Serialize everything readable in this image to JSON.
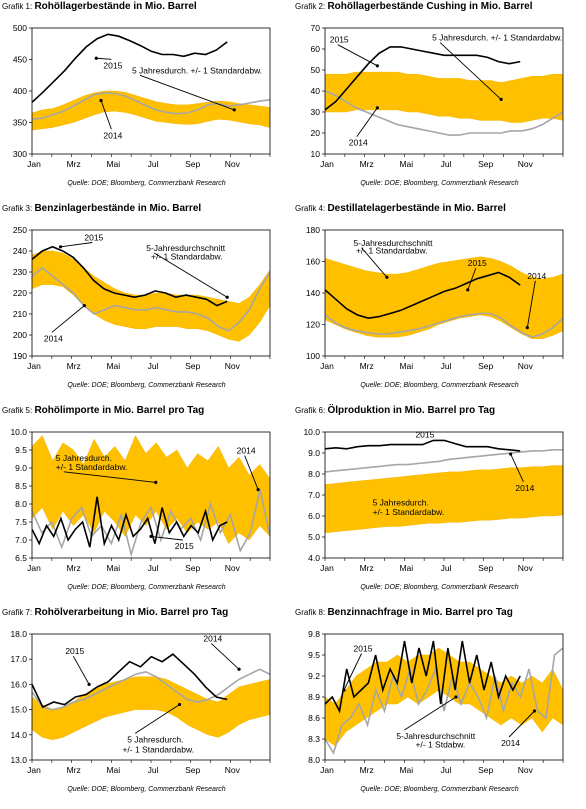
{
  "colors": {
    "band": "#FFC000",
    "band_edge": "#F5B400",
    "line2015": "#000000",
    "line2014": "#A6A6A6",
    "frame": "#000000"
  },
  "chart_data": [
    {
      "id": "c1",
      "type": "line",
      "label_prefix": "Grafik 1:",
      "title": "Rohöllagerbestände in Mio. Barrel",
      "source": "Quelle: DOE; Bloomberg, Commerzbank Research",
      "ylim": [
        300,
        500
      ],
      "yticks": [
        300,
        350,
        400,
        450,
        500
      ],
      "xtick_labels": [
        "Jan",
        "Mrz",
        "Mai",
        "Jul",
        "Sep",
        "Nov"
      ],
      "band_upper": [
        365,
        370,
        372,
        378,
        385,
        392,
        397,
        400,
        400,
        398,
        393,
        388,
        383,
        380,
        378,
        378,
        380,
        382,
        384,
        383,
        380,
        378,
        376,
        374
      ],
      "band_lower": [
        338,
        340,
        342,
        346,
        350,
        356,
        362,
        367,
        368,
        366,
        362,
        357,
        352,
        350,
        348,
        347,
        348,
        352,
        355,
        354,
        351,
        348,
        346,
        342
      ],
      "series_2015": [
        382,
        398,
        415,
        432,
        452,
        470,
        483,
        490,
        487,
        480,
        472,
        463,
        458,
        458,
        455,
        460,
        458,
        465,
        478
      ],
      "series_2014": [
        355,
        357,
        362,
        368,
        376,
        385,
        394,
        397,
        396,
        392,
        385,
        377,
        370,
        366,
        364,
        365,
        370,
        378,
        380,
        376,
        378,
        381,
        384,
        386
      ],
      "annotations": [
        {
          "text": "2015",
          "x": 0.27,
          "y": 452,
          "tx": 0.3,
          "ty": 436
        },
        {
          "text": "2014",
          "x": 0.29,
          "y": 385,
          "tx": 0.3,
          "ty": 325
        },
        {
          "text": "5 Jahresdurch. +/- 1 Standardabw.",
          "x": 0.85,
          "y": 370,
          "tx": 0.42,
          "ty": 428
        }
      ]
    },
    {
      "id": "c2",
      "type": "line",
      "label_prefix": "Grafik 2:",
      "title": "Rohöllagerbestände Cushing in Mio. Barrel",
      "source": "Quelle: DOE; Bloomberg, Commerzbank Research",
      "ylim": [
        10,
        70
      ],
      "yticks": [
        10,
        20,
        30,
        40,
        50,
        60,
        70
      ],
      "xtick_labels": [
        "Jan",
        "Mrz",
        "Mai",
        "Jul",
        "Sep",
        "Nov"
      ],
      "band_upper": [
        48,
        48,
        48,
        49,
        49,
        49,
        49,
        49,
        48,
        48,
        47,
        46,
        46,
        46,
        45,
        45,
        45,
        44,
        45,
        46,
        47,
        47,
        48,
        48
      ],
      "band_lower": [
        30,
        30,
        30,
        31,
        31,
        31,
        31,
        31,
        30,
        30,
        29,
        28,
        28,
        27,
        27,
        26,
        26,
        26,
        25,
        25,
        26,
        27,
        27,
        26
      ],
      "series_2015": [
        31,
        35,
        41,
        47,
        53,
        58,
        61,
        61,
        60,
        59,
        58,
        57,
        57,
        57,
        57,
        56,
        54,
        53,
        54
      ],
      "series_2014": [
        40,
        38,
        35,
        32,
        30,
        28,
        26,
        24,
        23,
        22,
        21,
        20,
        19,
        19,
        20,
        20,
        20,
        20,
        21,
        21,
        22,
        24,
        27,
        30
      ],
      "annotations": [
        {
          "text": "2015",
          "x": 0.22,
          "y": 52,
          "tx": 0.02,
          "ty": 63
        },
        {
          "text": "5 Jahresdurch. +/- 1 Standardabw.",
          "x": 0.74,
          "y": 36,
          "tx": 0.45,
          "ty": 64
        },
        {
          "text": "2014",
          "x": 0.22,
          "y": 32,
          "tx": 0.1,
          "ty": 14
        }
      ]
    },
    {
      "id": "c3",
      "type": "line",
      "label_prefix": "Grafik 3:",
      "title": "Benzinlagerbestände in Mio. Barrel",
      "source": "Quelle: DOE; Bloomberg, Commerzbank Research",
      "ylim": [
        190,
        250
      ],
      "yticks": [
        190,
        200,
        210,
        220,
        230,
        240,
        250
      ],
      "xtick_labels": [
        "Jan",
        "Mrz",
        "Mai",
        "Jul",
        "Sep",
        "Nov"
      ],
      "band_upper": [
        238,
        240,
        240,
        239,
        236,
        232,
        228,
        225,
        222,
        220,
        219,
        219,
        220,
        220,
        219,
        219,
        219,
        218,
        217,
        216,
        215,
        218,
        224,
        231
      ],
      "band_lower": [
        222,
        224,
        224,
        223,
        219,
        214,
        210,
        207,
        205,
        204,
        203,
        203,
        204,
        204,
        204,
        203,
        203,
        202,
        200,
        198,
        197,
        200,
        206,
        214
      ],
      "series_2015": [
        236,
        240,
        242,
        240,
        237,
        232,
        226,
        222,
        220,
        219,
        218,
        219,
        221,
        220,
        218,
        219,
        218,
        217,
        214,
        216
      ],
      "series_2014": [
        228,
        232,
        228,
        224,
        220,
        214,
        210,
        212,
        214,
        213,
        212,
        212,
        213,
        212,
        211,
        211,
        210,
        208,
        204,
        202,
        206,
        212,
        222,
        230
      ],
      "annotations": [
        {
          "text": "2015",
          "x": 0.12,
          "y": 242,
          "tx": 0.22,
          "ty": 245
        },
        {
          "text": "5-Jahresdurchschnitt",
          "x": 0.82,
          "y": 218,
          "tx": 0.48,
          "ty": 240
        },
        {
          "text": "+/- 1 Standardabw.",
          "x": null,
          "y": null,
          "tx": 0.5,
          "ty": 236
        },
        {
          "text": "2014",
          "x": 0.22,
          "y": 214,
          "tx": 0.05,
          "ty": 197
        }
      ]
    },
    {
      "id": "c4",
      "type": "line",
      "label_prefix": "Grafik 4:",
      "title": "Destillatelagerbestände in Mio. Barrel",
      "source": "Quelle: DOE; Bloomberg, Commerzbank Research",
      "ylim": [
        100,
        180
      ],
      "yticks": [
        100,
        120,
        140,
        160,
        180
      ],
      "xtick_labels": [
        "Jan",
        "Mrz",
        "Mai",
        "Jul",
        "Sep",
        "Nov"
      ],
      "band_upper": [
        162,
        160,
        158,
        156,
        154,
        153,
        152,
        152,
        153,
        155,
        157,
        159,
        160,
        161,
        162,
        163,
        162,
        160,
        157,
        153,
        150,
        149,
        150,
        152
      ],
      "band_lower": [
        123,
        120,
        117,
        115,
        113,
        112,
        112,
        112,
        113,
        115,
        117,
        120,
        122,
        124,
        125,
        126,
        125,
        122,
        118,
        114,
        111,
        111,
        113,
        116
      ],
      "series_2015": [
        142,
        136,
        130,
        126,
        124,
        125,
        127,
        129,
        132,
        135,
        138,
        141,
        143,
        146,
        149,
        151,
        153,
        150,
        145
      ],
      "series_2014": [
        126,
        121,
        118,
        116,
        115,
        114,
        114,
        115,
        116,
        117,
        119,
        121,
        123,
        125,
        126,
        127,
        127,
        124,
        119,
        115,
        112,
        114,
        118,
        124
      ],
      "annotations": [
        {
          "text": "5-Jahresdurchschnitt",
          "x": 0.26,
          "y": 150,
          "tx": 0.12,
          "ty": 170
        },
        {
          "text": "+/- 1 Standardabw.",
          "x": null,
          "y": null,
          "tx": 0.13,
          "ty": 165
        },
        {
          "text": "2015",
          "x": 0.6,
          "y": 142,
          "tx": 0.6,
          "ty": 157
        },
        {
          "text": "2014",
          "x": 0.85,
          "y": 118,
          "tx": 0.85,
          "ty": 149
        }
      ]
    },
    {
      "id": "c5",
      "type": "line",
      "label_prefix": "Grafik 5:",
      "title": "Rohölimporte in Mio. Barrel pro Tag",
      "source": "Quelle: DOE; Bloomberg, Commerzbank Research",
      "ylim": [
        6.5,
        10.0
      ],
      "yticks": [
        6.5,
        7.0,
        7.5,
        8.0,
        8.5,
        9.0,
        9.5,
        10.0
      ],
      "xtick_labels": [
        "Jan",
        "Mrz",
        "Mai",
        "Jul",
        "Sep",
        "Nov"
      ],
      "band_upper": [
        9.6,
        9.9,
        9.2,
        9.7,
        9.5,
        9.1,
        9.8,
        9.3,
        9.6,
        9.2,
        9.9,
        9.4,
        9.7,
        9.3,
        9.5,
        9.0,
        9.4,
        9.2,
        9.6,
        9.0,
        9.3,
        8.8,
        9.1,
        8.7
      ],
      "band_lower": [
        7.6,
        7.9,
        7.3,
        7.8,
        7.4,
        7.7,
        7.2,
        7.8,
        7.5,
        7.1,
        7.7,
        7.4,
        7.8,
        7.3,
        7.6,
        7.2,
        7.5,
        7.3,
        7.5,
        6.9,
        7.2,
        7.0,
        7.4,
        7.1
      ],
      "series_2015": [
        7.3,
        6.9,
        7.4,
        7.1,
        7.6,
        7.0,
        7.3,
        7.5,
        6.8,
        8.2,
        6.9,
        7.4,
        7.0,
        7.7,
        7.1,
        7.3,
        7.6,
        6.9,
        7.9,
        7.2,
        7.5,
        7.1,
        7.4,
        7.2,
        7.8,
        7.0,
        7.4,
        7.5
      ],
      "series_2014": [
        7.8,
        7.2,
        7.5,
        6.8,
        7.6,
        7.9,
        7.1,
        7.4,
        6.9,
        7.7,
        6.6,
        7.5,
        7.9,
        7.0,
        7.8,
        7.3,
        7.6,
        7.0,
        8.0,
        7.2,
        7.7,
        6.7,
        7.2,
        8.4,
        7.1
      ],
      "annotations": [
        {
          "text": "5 Jahresdurch.",
          "x": null,
          "y": null,
          "tx": 0.1,
          "ty": 9.2
        },
        {
          "text": "+/-  1 Standardabw.",
          "x": 0.52,
          "y": 8.6,
          "tx": 0.1,
          "ty": 8.95
        },
        {
          "text": "2014",
          "x": 0.95,
          "y": 8.4,
          "tx": 0.86,
          "ty": 9.4
        },
        {
          "text": "2015",
          "x": 0.5,
          "y": 7.1,
          "tx": 0.6,
          "ty": 6.75
        }
      ]
    },
    {
      "id": "c6",
      "type": "line",
      "label_prefix": "Grafik 6:",
      "title": "Ölproduktion in Mio. Barrel pro Tag",
      "source": "Quelle: DOE; Bloomberg, Commerzbank Research",
      "ylim": [
        4.0,
        10.0
      ],
      "yticks": [
        4.0,
        5.0,
        6.0,
        7.0,
        8.0,
        9.0,
        10.0
      ],
      "xtick_labels": [
        "Jan",
        "Mrz",
        "Mai",
        "Jul",
        "Sep",
        "Nov"
      ],
      "band_upper": [
        7.5,
        7.55,
        7.6,
        7.65,
        7.7,
        7.75,
        7.8,
        7.85,
        7.9,
        7.95,
        8.0,
        8.05,
        8.1,
        8.1,
        8.15,
        8.2,
        8.2,
        8.25,
        8.3,
        8.3,
        8.35,
        8.35,
        8.4,
        8.4
      ],
      "band_lower": [
        5.2,
        5.25,
        5.3,
        5.35,
        5.4,
        5.45,
        5.5,
        5.5,
        5.55,
        5.6,
        5.65,
        5.65,
        5.7,
        5.7,
        5.75,
        5.8,
        5.8,
        5.85,
        5.9,
        5.9,
        5.95,
        6.0,
        6.0,
        6.05
      ],
      "series_2015": [
        9.2,
        9.25,
        9.2,
        9.3,
        9.35,
        9.35,
        9.4,
        9.4,
        9.4,
        9.4,
        9.6,
        9.6,
        9.45,
        9.3,
        9.3,
        9.3,
        9.2,
        9.15,
        9.1
      ],
      "series_2014": [
        8.1,
        8.15,
        8.2,
        8.25,
        8.3,
        8.35,
        8.4,
        8.45,
        8.45,
        8.5,
        8.55,
        8.6,
        8.7,
        8.75,
        8.8,
        8.85,
        8.9,
        8.95,
        9.0,
        9.05,
        9.1,
        9.1,
        9.15,
        9.15
      ],
      "annotations": [
        {
          "text": "2015",
          "x": null,
          "y": null,
          "tx": 0.38,
          "ty": 9.75
        },
        {
          "text": "2014",
          "x": 0.78,
          "y": 8.95,
          "tx": 0.8,
          "ty": 7.2
        },
        {
          "text": "5 Jahresdurch.",
          "x": null,
          "y": null,
          "tx": 0.2,
          "ty": 6.5
        },
        {
          "text": "+/-  1 Standardabw.",
          "x": null,
          "y": null,
          "tx": 0.2,
          "ty": 6.05
        }
      ]
    },
    {
      "id": "c7",
      "type": "line",
      "label_prefix": "Grafik 7:",
      "title": "Rohölverarbeitung in Mio. Barrel pro Tag",
      "source": "Quelle: DOE; Bloomberg, Commerzbank Research",
      "ylim": [
        13.0,
        18.0
      ],
      "yticks": [
        13.0,
        14.0,
        15.0,
        16.0,
        17.0,
        18.0
      ],
      "xtick_labels": [
        "Jan",
        "Mrz",
        "Mai",
        "Jul",
        "Sep",
        "Nov"
      ],
      "band_upper": [
        15.5,
        15.2,
        15.0,
        15.1,
        15.3,
        15.6,
        15.8,
        16.0,
        16.1,
        16.2,
        16.3,
        16.3,
        16.3,
        16.2,
        16.0,
        15.8,
        15.6,
        15.4,
        15.3,
        15.6,
        15.9,
        16.0,
        16.1,
        16.2
      ],
      "band_lower": [
        14.2,
        13.9,
        13.8,
        13.9,
        14.1,
        14.3,
        14.5,
        14.7,
        14.8,
        14.9,
        15.0,
        15.0,
        15.0,
        14.9,
        14.7,
        14.4,
        14.2,
        14.0,
        13.9,
        14.1,
        14.4,
        14.6,
        14.7,
        14.8
      ],
      "series_2015": [
        16.0,
        15.1,
        15.3,
        15.2,
        15.5,
        15.6,
        15.9,
        16.1,
        16.5,
        16.9,
        16.7,
        17.1,
        16.9,
        17.2,
        16.8,
        16.4,
        15.9,
        15.5,
        15.4
      ],
      "series_2014": [
        15.7,
        15.1,
        15.0,
        15.1,
        15.3,
        15.4,
        15.6,
        15.8,
        16.0,
        16.2,
        16.4,
        16.5,
        16.3,
        16.0,
        15.7,
        15.4,
        15.3,
        15.4,
        15.6,
        15.9,
        16.2,
        16.4,
        16.6,
        16.4
      ],
      "annotations": [
        {
          "text": "2015",
          "x": 0.24,
          "y": 16.0,
          "tx": 0.14,
          "ty": 17.2
        },
        {
          "text": "2014",
          "x": 0.87,
          "y": 16.6,
          "tx": 0.72,
          "ty": 17.7
        },
        {
          "text": "5 Jahresdurch.",
          "x": 0.62,
          "y": 15.2,
          "tx": 0.4,
          "ty": 13.7
        },
        {
          "text": "+/-  1 Standardabw.",
          "x": null,
          "y": null,
          "tx": 0.38,
          "ty": 13.3
        }
      ]
    },
    {
      "id": "c8",
      "type": "line",
      "label_prefix": "Grafik 8:",
      "title": "Benzinnachfrage in Mio. Barrel pro Tag",
      "source": "Quelle: DOE; Bloomberg, Commerzbank Research",
      "ylim": [
        8.0,
        9.8
      ],
      "yticks": [
        8.0,
        8.3,
        8.6,
        8.9,
        9.2,
        9.5,
        9.8
      ],
      "xtick_labels": [
        "Jan",
        "Mrz",
        "Mai",
        "Jul",
        "Sep",
        "Nov"
      ],
      "band_upper": [
        8.9,
        8.8,
        9.0,
        9.2,
        9.3,
        9.4,
        9.4,
        9.5,
        9.4,
        9.5,
        9.5,
        9.6,
        9.5,
        9.4,
        9.4,
        9.3,
        9.2,
        9.1,
        9.2,
        9.1,
        9.2,
        9.1,
        9.3,
        9.0
      ],
      "band_lower": [
        8.3,
        8.2,
        8.4,
        8.5,
        8.6,
        8.7,
        8.8,
        8.8,
        8.9,
        8.8,
        8.9,
        9.0,
        8.9,
        8.8,
        8.8,
        8.7,
        8.6,
        8.5,
        8.6,
        8.5,
        8.6,
        8.4,
        8.6,
        8.5
      ],
      "series_2015": [
        8.8,
        8.9,
        8.7,
        9.3,
        8.9,
        9.0,
        9.1,
        9.5,
        9.0,
        9.3,
        9.1,
        9.7,
        9.1,
        9.6,
        9.2,
        9.7,
        8.8,
        9.6,
        9.0,
        9.7,
        9.1,
        9.5,
        9.0,
        9.4,
        8.9,
        9.2,
        9.0,
        9.2
      ],
      "series_2014": [
        8.3,
        8.1,
        8.5,
        8.6,
        8.8,
        8.5,
        9.0,
        8.7,
        9.2,
        8.9,
        9.3,
        8.8,
        9.0,
        9.3,
        8.7,
        9.2,
        8.8,
        9.1,
        8.9,
        8.6,
        9.2,
        8.7,
        9.1,
        8.9,
        9.3,
        8.7,
        8.6,
        9.5,
        9.6
      ],
      "annotations": [
        {
          "text": "2015",
          "x": 0.08,
          "y": 9.0,
          "tx": 0.12,
          "ty": 9.55
        },
        {
          "text": "5-Jahresdurchschnitt",
          "x": 0.55,
          "y": 8.9,
          "tx": 0.3,
          "ty": 8.3
        },
        {
          "text": "+/- 1 Stdabw.",
          "x": null,
          "y": null,
          "tx": 0.38,
          "ty": 8.18
        },
        {
          "text": "2014",
          "x": 0.88,
          "y": 8.7,
          "tx": 0.74,
          "ty": 8.2
        }
      ]
    }
  ]
}
